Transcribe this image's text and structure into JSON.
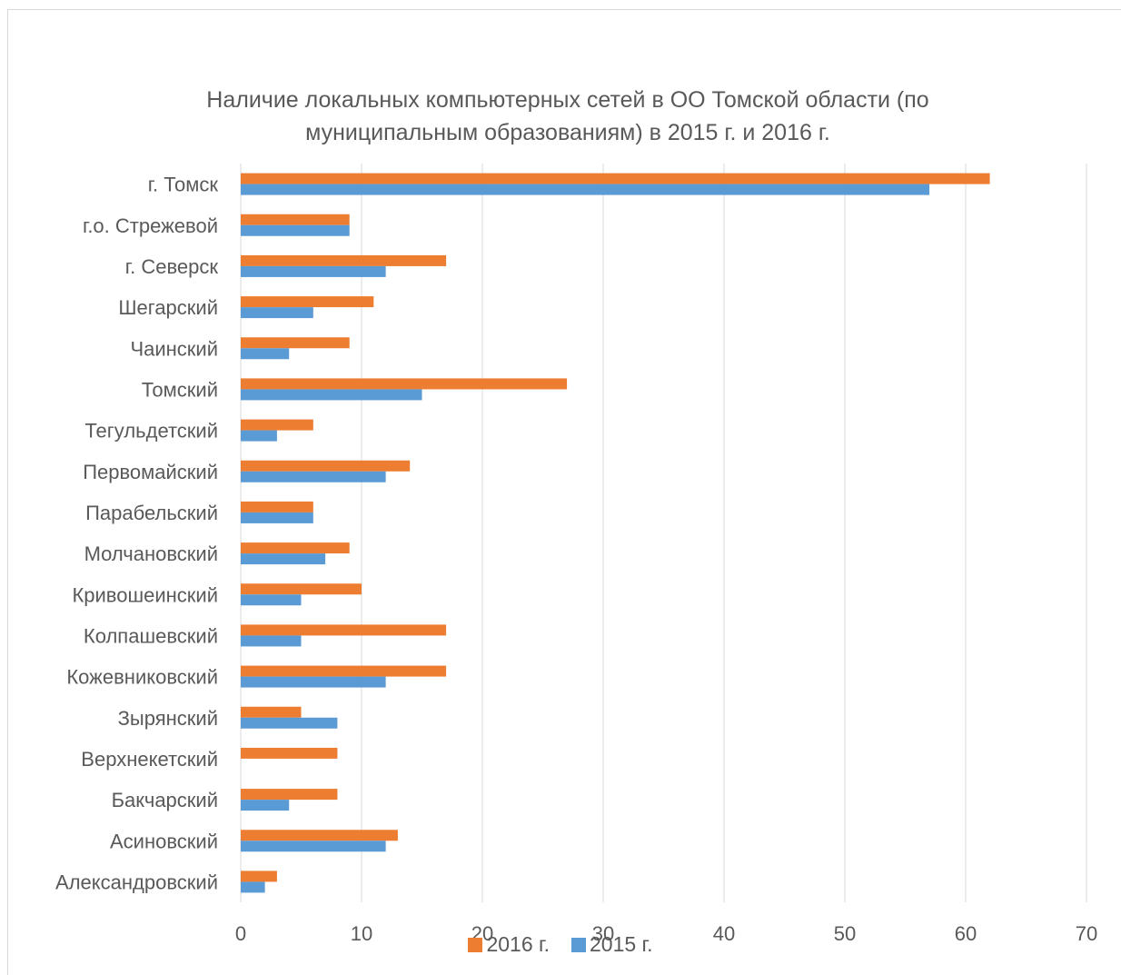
{
  "chart_data": {
    "type": "bar",
    "orientation": "horizontal",
    "title": "Наличие локальных компьютерных сетей в ОО Томской области (по муниципальным образованиям) в 2015 г. и 2016 г.",
    "categories": [
      "г. Томск",
      "г.о. Стрежевой",
      "г. Северск",
      "Шегарский",
      "Чаинский",
      "Томский",
      "Тегульдетский",
      "Первомайский",
      "Парабельский",
      "Молчановский",
      "Кривошеинский",
      "Колпашевский",
      "Кожевниковский",
      "Зырянский",
      "Верхнекетский",
      "Бакчарский",
      "Асиновский",
      "Александровский"
    ],
    "series": [
      {
        "name": "2016 г.",
        "color": "#ed7d31",
        "values": [
          62,
          9,
          17,
          11,
          9,
          27,
          6,
          14,
          6,
          9,
          10,
          17,
          17,
          5,
          8,
          8,
          13,
          3
        ]
      },
      {
        "name": "2015 г.",
        "color": "#5b9bd5",
        "values": [
          57,
          9,
          12,
          6,
          4,
          15,
          3,
          12,
          6,
          7,
          5,
          5,
          12,
          8,
          0,
          4,
          12,
          2
        ]
      }
    ],
    "xlim": [
      0,
      70
    ],
    "xticks": [
      "0",
      "10",
      "20",
      "30",
      "40",
      "50",
      "60",
      "70"
    ],
    "grid": true,
    "gridColor": "#d9d9d9",
    "legend": "bottom"
  }
}
